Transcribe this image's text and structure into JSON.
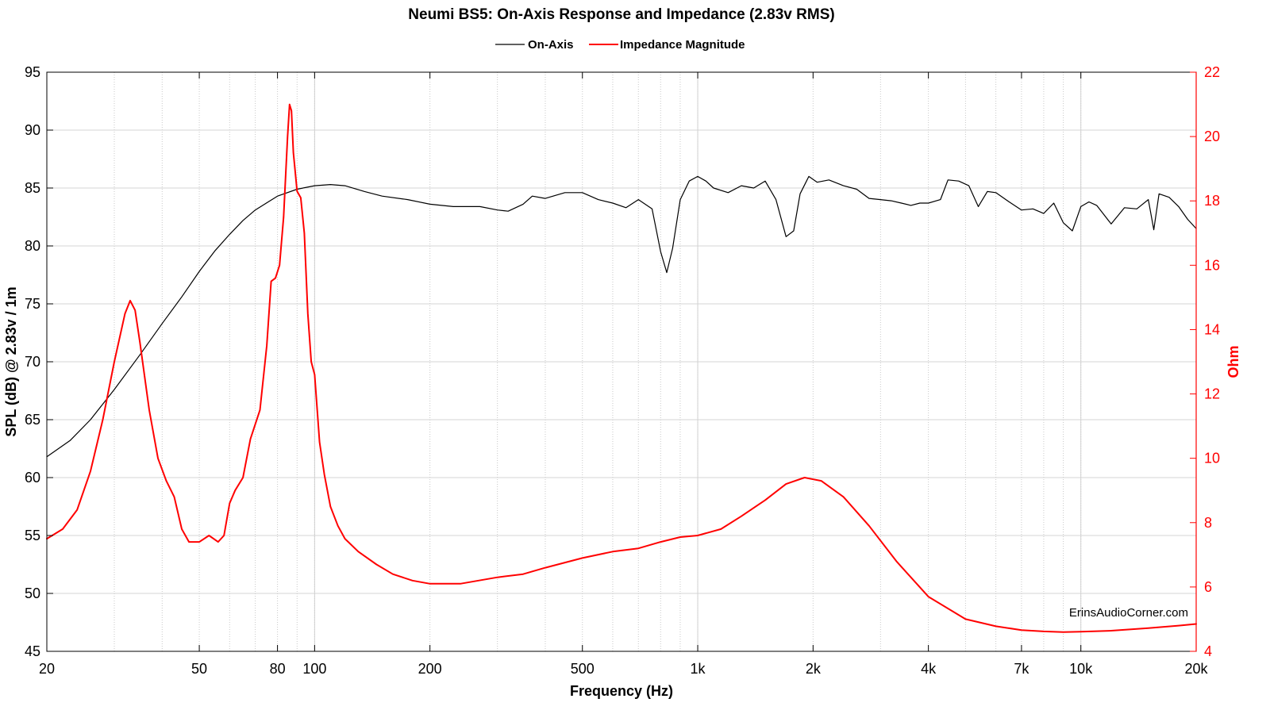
{
  "chart_data": {
    "type": "line",
    "title": "Neumi BS5: On-Axis Response and Impedance (2.83v RMS)",
    "xlabel": "Frequency (Hz)",
    "ylabel_left": "SPL (dB) @ 2.83v / 1m",
    "ylabel_right": "Ohm",
    "x_scale": "log",
    "xlim": [
      20,
      20000
    ],
    "ylim_left": [
      45,
      95
    ],
    "ylim_right": [
      4,
      22
    ],
    "grid": true,
    "legend_position": "top-center",
    "x_ticks": [
      {
        "value": 20,
        "label": "20"
      },
      {
        "value": 50,
        "label": "50"
      },
      {
        "value": 80,
        "label": "80"
      },
      {
        "value": 100,
        "label": "100"
      },
      {
        "value": 200,
        "label": "200"
      },
      {
        "value": 500,
        "label": "500"
      },
      {
        "value": 1000,
        "label": "1k"
      },
      {
        "value": 2000,
        "label": "2k"
      },
      {
        "value": 4000,
        "label": "4k"
      },
      {
        "value": 7000,
        "label": "7k"
      },
      {
        "value": 10000,
        "label": "10k"
      },
      {
        "value": 20000,
        "label": "20k"
      }
    ],
    "y_left_ticks": [
      45,
      50,
      55,
      60,
      65,
      70,
      75,
      80,
      85,
      90,
      95
    ],
    "y_right_ticks": [
      4,
      6,
      8,
      10,
      12,
      14,
      16,
      18,
      20,
      22
    ],
    "series": [
      {
        "name": "On-Axis",
        "color": "#000000",
        "axis": "left",
        "points": [
          [
            20,
            61.8
          ],
          [
            23,
            63.2
          ],
          [
            26,
            65.0
          ],
          [
            30,
            67.6
          ],
          [
            35,
            70.6
          ],
          [
            40,
            73.3
          ],
          [
            45,
            75.6
          ],
          [
            50,
            77.8
          ],
          [
            55,
            79.6
          ],
          [
            60,
            81.0
          ],
          [
            65,
            82.2
          ],
          [
            70,
            83.1
          ],
          [
            80,
            84.3
          ],
          [
            90,
            84.9
          ],
          [
            100,
            85.2
          ],
          [
            110,
            85.3
          ],
          [
            120,
            85.2
          ],
          [
            135,
            84.7
          ],
          [
            150,
            84.3
          ],
          [
            175,
            84.0
          ],
          [
            200,
            83.6
          ],
          [
            230,
            83.4
          ],
          [
            270,
            83.4
          ],
          [
            300,
            83.1
          ],
          [
            320,
            83.0
          ],
          [
            350,
            83.6
          ],
          [
            370,
            84.3
          ],
          [
            400,
            84.1
          ],
          [
            450,
            84.6
          ],
          [
            500,
            84.6
          ],
          [
            550,
            84.0
          ],
          [
            600,
            83.7
          ],
          [
            650,
            83.3
          ],
          [
            700,
            84.0
          ],
          [
            760,
            83.2
          ],
          [
            800,
            79.5
          ],
          [
            830,
            77.7
          ],
          [
            860,
            79.8
          ],
          [
            900,
            84.0
          ],
          [
            950,
            85.6
          ],
          [
            1000,
            86.0
          ],
          [
            1050,
            85.6
          ],
          [
            1100,
            85.0
          ],
          [
            1200,
            84.6
          ],
          [
            1300,
            85.2
          ],
          [
            1400,
            85.0
          ],
          [
            1500,
            85.6
          ],
          [
            1600,
            84.0
          ],
          [
            1700,
            80.8
          ],
          [
            1780,
            81.3
          ],
          [
            1850,
            84.5
          ],
          [
            1950,
            86.0
          ],
          [
            2050,
            85.5
          ],
          [
            2200,
            85.7
          ],
          [
            2400,
            85.2
          ],
          [
            2600,
            84.9
          ],
          [
            2800,
            84.1
          ],
          [
            3000,
            84.0
          ],
          [
            3200,
            83.9
          ],
          [
            3400,
            83.7
          ],
          [
            3600,
            83.5
          ],
          [
            3800,
            83.7
          ],
          [
            4000,
            83.7
          ],
          [
            4300,
            84.0
          ],
          [
            4500,
            85.7
          ],
          [
            4800,
            85.6
          ],
          [
            5100,
            85.2
          ],
          [
            5400,
            83.4
          ],
          [
            5700,
            84.7
          ],
          [
            6000,
            84.6
          ],
          [
            6500,
            83.8
          ],
          [
            7000,
            83.1
          ],
          [
            7500,
            83.2
          ],
          [
            8000,
            82.8
          ],
          [
            8500,
            83.7
          ],
          [
            9000,
            82.0
          ],
          [
            9500,
            81.3
          ],
          [
            10000,
            83.4
          ],
          [
            10500,
            83.8
          ],
          [
            11000,
            83.5
          ],
          [
            12000,
            81.9
          ],
          [
            13000,
            83.3
          ],
          [
            14000,
            83.2
          ],
          [
            15000,
            84.0
          ],
          [
            15500,
            81.4
          ],
          [
            16000,
            84.5
          ],
          [
            17000,
            84.2
          ],
          [
            18000,
            83.4
          ],
          [
            19000,
            82.3
          ],
          [
            20000,
            81.5
          ]
        ]
      },
      {
        "name": "Impedance Magnitude",
        "color": "#ff0000",
        "axis": "right",
        "points": [
          [
            20,
            7.5
          ],
          [
            22,
            7.8
          ],
          [
            24,
            8.4
          ],
          [
            26,
            9.6
          ],
          [
            28,
            11.2
          ],
          [
            30,
            13.0
          ],
          [
            32,
            14.5
          ],
          [
            33,
            14.9
          ],
          [
            34,
            14.6
          ],
          [
            35,
            13.6
          ],
          [
            37,
            11.5
          ],
          [
            39,
            10.0
          ],
          [
            41,
            9.3
          ],
          [
            43,
            8.8
          ],
          [
            45,
            7.8
          ],
          [
            47,
            7.4
          ],
          [
            50,
            7.4
          ],
          [
            53,
            7.6
          ],
          [
            56,
            7.4
          ],
          [
            58,
            7.6
          ],
          [
            60,
            8.6
          ],
          [
            62,
            9.0
          ],
          [
            65,
            9.4
          ],
          [
            68,
            10.6
          ],
          [
            72,
            11.5
          ],
          [
            75,
            13.5
          ],
          [
            77,
            15.5
          ],
          [
            79,
            15.6
          ],
          [
            81,
            16.0
          ],
          [
            83,
            17.5
          ],
          [
            85,
            20.0
          ],
          [
            86,
            21.0
          ],
          [
            87,
            20.8
          ],
          [
            88,
            19.5
          ],
          [
            90,
            18.3
          ],
          [
            92,
            18.1
          ],
          [
            94,
            17.0
          ],
          [
            96,
            14.5
          ],
          [
            98,
            13.0
          ],
          [
            100,
            12.6
          ],
          [
            103,
            10.5
          ],
          [
            106,
            9.5
          ],
          [
            110,
            8.5
          ],
          [
            115,
            7.9
          ],
          [
            120,
            7.5
          ],
          [
            130,
            7.1
          ],
          [
            145,
            6.7
          ],
          [
            160,
            6.4
          ],
          [
            180,
            6.2
          ],
          [
            200,
            6.1
          ],
          [
            240,
            6.1
          ],
          [
            300,
            6.3
          ],
          [
            350,
            6.4
          ],
          [
            400,
            6.6
          ],
          [
            500,
            6.9
          ],
          [
            600,
            7.1
          ],
          [
            700,
            7.2
          ],
          [
            800,
            7.4
          ],
          [
            900,
            7.55
          ],
          [
            1000,
            7.6
          ],
          [
            1150,
            7.8
          ],
          [
            1300,
            8.2
          ],
          [
            1500,
            8.7
          ],
          [
            1700,
            9.2
          ],
          [
            1900,
            9.4
          ],
          [
            2100,
            9.3
          ],
          [
            2400,
            8.8
          ],
          [
            2800,
            7.9
          ],
          [
            3300,
            6.8
          ],
          [
            4000,
            5.7
          ],
          [
            5000,
            5.0
          ],
          [
            6000,
            4.78
          ],
          [
            7000,
            4.66
          ],
          [
            8000,
            4.62
          ],
          [
            9000,
            4.6
          ],
          [
            10000,
            4.61
          ],
          [
            12000,
            4.64
          ],
          [
            15000,
            4.72
          ],
          [
            18000,
            4.8
          ],
          [
            20000,
            4.85
          ]
        ]
      }
    ],
    "watermark": "ErinsAudioCorner.com"
  }
}
